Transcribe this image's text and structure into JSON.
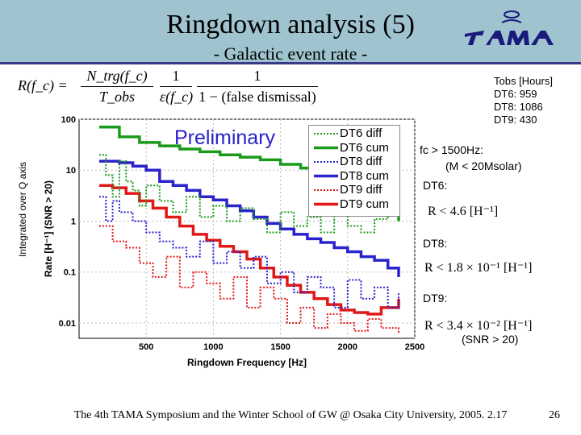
{
  "slide": {
    "title": "Ringdown analysis (5)",
    "subtitle": "- Galactic event rate -",
    "formula": {
      "lhs": "R(f_c) =",
      "num1": "N_trg(f_c)",
      "den1": "T_obs",
      "num2": "1",
      "den2": "ε(f_c)",
      "num3": "1",
      "den3": "1 − (false dismissal)"
    },
    "side_axis_label": "Integrated over Q axis",
    "preliminary": "Preliminary",
    "tobs": {
      "header": "Tobs [Hours]",
      "rows": [
        "DT6: 959",
        "DT8: 1086",
        "DT9: 430"
      ]
    },
    "fc_note": {
      "line1": "fc > 1500Hz:",
      "line2": "(M < 20Msolar)"
    },
    "results": [
      {
        "label": "DT6:",
        "bound": "R < 4.6 [H⁻¹]"
      },
      {
        "label": "DT8:",
        "bound": "R < 1.8 × 10⁻¹ [H⁻¹]"
      },
      {
        "label": "DT9:",
        "bound": "R < 3.4 × 10⁻² [H⁻¹]"
      }
    ],
    "snr_note": "(SNR > 20)",
    "footer": "The 4th TAMA Symposium and the Winter School of GW @ Osaka City University, 2005. 2.17",
    "page_number": "26"
  },
  "colors": {
    "header_bg": "#9fc4cf",
    "dt6": "#1a9a1a",
    "dt8": "#2a22cc",
    "dt9": "#e01818",
    "preliminary": "#2a22cc"
  },
  "chart_data": {
    "type": "line",
    "title": "",
    "xlabel": "Ringdown Frequency [Hz]",
    "ylabel": "Rate [H⁻¹]   (SNR > 20)",
    "xlim": [
      0,
      2500
    ],
    "ylim": [
      0.005,
      100
    ],
    "yscale": "log",
    "xticks": [
      "500",
      "1000",
      "1500",
      "2000",
      "2500"
    ],
    "yticks": [
      "0.01",
      "0.1",
      "1",
      "10",
      "100"
    ],
    "legend": [
      "DT6 diff",
      "DT6 cum",
      "DT8 diff",
      "DT8 cum",
      "DT9 diff",
      "DT9 cum"
    ],
    "series": [
      {
        "name": "DT6 cum",
        "style": "solid",
        "color": "#1a9a1a",
        "x": [
          150,
          300,
          450,
          600,
          750,
          900,
          1050,
          1200,
          1350,
          1500,
          1650,
          1800,
          1950,
          2100,
          2250,
          2320,
          2380
        ],
        "y": [
          70,
          45,
          35,
          30,
          26,
          23,
          20,
          18,
          16,
          13,
          11,
          9.5,
          8.0,
          6.5,
          5.0,
          2.0,
          1.0
        ]
      },
      {
        "name": "DT8 cum",
        "style": "solid",
        "color": "#2a22cc",
        "x": [
          150,
          300,
          400,
          500,
          600,
          700,
          800,
          900,
          1000,
          1100,
          1200,
          1300,
          1400,
          1500,
          1600,
          1700,
          1800,
          1900,
          2000,
          2100,
          2200,
          2300,
          2380
        ],
        "y": [
          15,
          14,
          12,
          10,
          6,
          5,
          4,
          3,
          2.6,
          2.0,
          1.6,
          1.2,
          0.9,
          0.7,
          0.55,
          0.45,
          0.38,
          0.3,
          0.25,
          0.2,
          0.17,
          0.12,
          0.08
        ]
      },
      {
        "name": "DT9 cum",
        "style": "solid",
        "color": "#e01818",
        "x": [
          150,
          250,
          350,
          450,
          550,
          650,
          750,
          850,
          950,
          1050,
          1150,
          1250,
          1350,
          1450,
          1550,
          1650,
          1750,
          1850,
          1950,
          2050,
          2150,
          2250,
          2380
        ],
        "y": [
          5,
          4.5,
          3.5,
          2.5,
          1.8,
          1.2,
          0.8,
          0.55,
          0.42,
          0.32,
          0.25,
          0.18,
          0.12,
          0.08,
          0.055,
          0.04,
          0.03,
          0.023,
          0.018,
          0.016,
          0.015,
          0.02,
          0.03
        ]
      },
      {
        "name": "DT6 diff",
        "style": "dotted",
        "color": "#1a9a1a",
        "x": [
          150,
          200,
          250,
          300,
          350,
          400,
          450,
          500,
          600,
          700,
          800,
          900,
          1000,
          1100,
          1200,
          1300,
          1400,
          1500,
          1600,
          1700,
          1800,
          1900,
          2000,
          2100,
          2200,
          2300,
          2380
        ],
        "y": [
          20,
          8,
          3,
          15,
          6,
          4,
          2,
          5,
          2.5,
          1.5,
          3,
          1.2,
          2,
          1,
          1.8,
          1.1,
          0.6,
          1.5,
          0.8,
          1.2,
          0.6,
          1.3,
          0.8,
          0.6,
          1.1,
          1.4,
          1.0
        ]
      },
      {
        "name": "DT8 diff",
        "style": "dotted",
        "color": "#2a22cc",
        "x": [
          150,
          200,
          250,
          300,
          400,
          500,
          600,
          700,
          800,
          900,
          1000,
          1100,
          1200,
          1300,
          1400,
          1500,
          1600,
          1700,
          1800,
          1900,
          2000,
          2100,
          2200,
          2300,
          2380
        ],
        "y": [
          3,
          1,
          2.5,
          1.5,
          1,
          0.6,
          0.4,
          0.3,
          0.2,
          0.4,
          0.15,
          0.25,
          0.12,
          0.2,
          0.06,
          0.1,
          0.04,
          0.08,
          0.05,
          0.02,
          0.07,
          0.03,
          0.05,
          0.02,
          0.04
        ]
      },
      {
        "name": "DT9 diff",
        "style": "dotted",
        "color": "#e01818",
        "x": [
          150,
          250,
          350,
          450,
          550,
          650,
          750,
          850,
          950,
          1050,
          1150,
          1250,
          1350,
          1450,
          1550,
          1650,
          1750,
          1850,
          1950,
          2050,
          2150,
          2250,
          2380
        ],
        "y": [
          0.8,
          0.4,
          0.3,
          0.15,
          0.08,
          0.2,
          0.05,
          0.1,
          0.06,
          0.03,
          0.08,
          0.02,
          0.05,
          0.03,
          0.01,
          0.02,
          0.008,
          0.015,
          0.01,
          0.007,
          0.012,
          0.008,
          0.006
        ]
      }
    ]
  }
}
